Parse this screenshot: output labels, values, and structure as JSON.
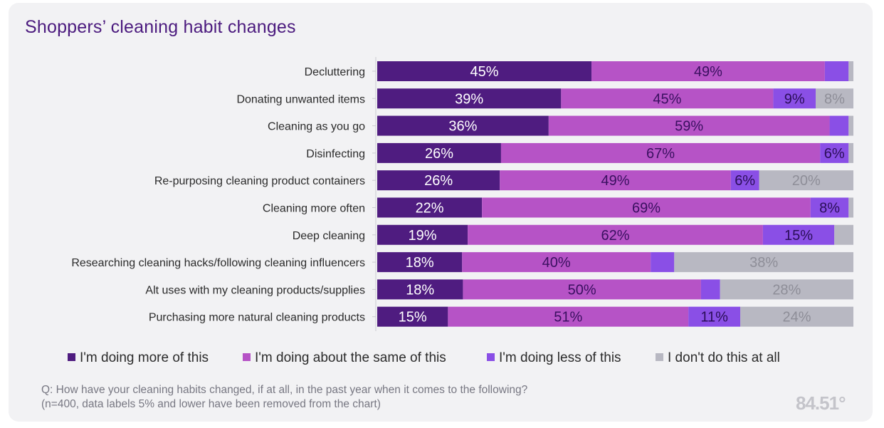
{
  "chart_data": {
    "type": "bar",
    "orientation": "horizontal",
    "stacked": "100%",
    "title": "Shoppers’ cleaning habit changes",
    "categories": [
      "Decluttering",
      "Donating unwanted items",
      "Cleaning as you go",
      "Disinfecting",
      "Re-purposing cleaning product containers",
      "Cleaning more often",
      "Deep cleaning",
      "Researching cleaning hacks/following cleaning influencers",
      "Alt uses with my cleaning products/supplies",
      "Purchasing more natural cleaning products"
    ],
    "series": [
      {
        "name": "I'm doing more of this",
        "color": "#4f1c80",
        "label_color": "#ffffff",
        "values": [
          45,
          39,
          36,
          26,
          26,
          22,
          19,
          18,
          18,
          15
        ]
      },
      {
        "name": "I'm doing about the same of this",
        "color": "#b653c6",
        "label_color": "#3a1060",
        "values": [
          49,
          45,
          59,
          67,
          49,
          69,
          62,
          40,
          50,
          51
        ]
      },
      {
        "name": "I'm doing less of this",
        "color": "#8a4fe6",
        "label_color": "#2a0e58",
        "values": [
          5,
          9,
          4,
          6,
          6,
          8,
          15,
          5,
          4,
          11
        ]
      },
      {
        "name": "I don't do this at all",
        "color": "#b8b8c2",
        "label_color": "#8e8e98",
        "values": [
          1,
          8,
          1,
          1,
          20,
          1,
          4,
          38,
          28,
          24
        ]
      }
    ],
    "label_threshold": 5,
    "xlim": [
      0,
      100
    ]
  },
  "legend": [
    {
      "label": "I'm doing more of this",
      "color": "#4f1c80"
    },
    {
      "label": "I'm doing about the same of this",
      "color": "#b653c6"
    },
    {
      "label": "I'm doing less of this",
      "color": "#8a4fe6"
    },
    {
      "label": "I don't do this at all",
      "color": "#b8b8c2"
    }
  ],
  "footnote": {
    "line1": "Q: How have your cleaning habits changed, if at all, in the past year when it comes to the following?",
    "line2": "(n=400, data labels 5% and lower have been removed from the chart)"
  },
  "logo_text": "84.51°"
}
